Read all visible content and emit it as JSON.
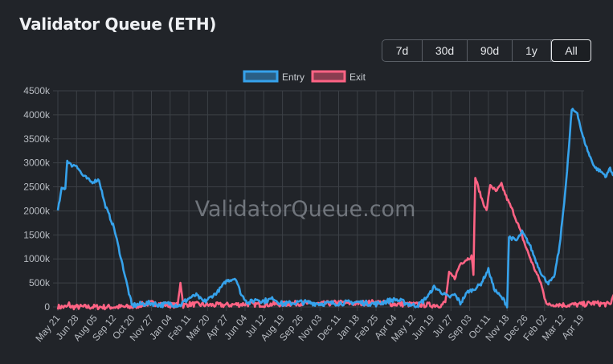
{
  "header": {
    "title": "Validator Queue (ETH)"
  },
  "range_buttons": [
    {
      "label": "7d",
      "active": false
    },
    {
      "label": "30d",
      "active": false
    },
    {
      "label": "90d",
      "active": false
    },
    {
      "label": "1y",
      "active": false
    },
    {
      "label": "All",
      "active": true
    }
  ],
  "watermark": "ValidatorQueue.com",
  "colors": {
    "entry": "#36a2eb",
    "exit": "#ff6384",
    "grid": "#3c4046",
    "tick": "#b8bcc2",
    "background": "#212429"
  },
  "chart_data": {
    "type": "line",
    "title": "Validator Queue (ETH)",
    "xlabel": "",
    "ylabel": "",
    "ylim": [
      0,
      4500000
    ],
    "y_ticks": [
      "0",
      "500k",
      "1000k",
      "1500k",
      "2000k",
      "2500k",
      "3000k",
      "3500k",
      "4000k",
      "4500k"
    ],
    "grid": true,
    "legend_position": "top",
    "categories": [
      "May 21",
      "Jun 28",
      "Aug 05",
      "Sep 12",
      "Oct 20",
      "Nov 27",
      "Jan 04",
      "Feb 11",
      "Mar 20",
      "Apr 27",
      "Jun 04",
      "Jul 12",
      "Aug 19",
      "Sep 26",
      "Nov 03",
      "Dec 11",
      "Jan 18",
      "Feb 25",
      "Apr 04",
      "May 12",
      "Jun 19",
      "Jul 27",
      "Sep 03",
      "Oct 11",
      "Nov 18",
      "Dec 26",
      "Feb 02",
      "Mar 12",
      "Apr 19"
    ],
    "series": [
      {
        "name": "Entry",
        "points_k": [
          [
            0,
            2000
          ],
          [
            0.2,
            2450
          ],
          [
            0.4,
            2480
          ],
          [
            0.5,
            3050
          ],
          [
            0.7,
            2950
          ],
          [
            1.0,
            2950
          ],
          [
            1.3,
            2750
          ],
          [
            1.8,
            2600
          ],
          [
            2.2,
            2650
          ],
          [
            2.5,
            2150
          ],
          [
            3.0,
            1650
          ],
          [
            3.5,
            800
          ],
          [
            3.95,
            30
          ],
          [
            4.5,
            60
          ],
          [
            5.0,
            80
          ],
          [
            5.5,
            40
          ],
          [
            6.0,
            70
          ],
          [
            6.5,
            30
          ],
          [
            7.0,
            180
          ],
          [
            7.4,
            250
          ],
          [
            7.8,
            100
          ],
          [
            8.5,
            300
          ],
          [
            9.0,
            540
          ],
          [
            9.5,
            600
          ],
          [
            9.8,
            250
          ],
          [
            10.2,
            80
          ],
          [
            10.6,
            160
          ],
          [
            11.0,
            120
          ],
          [
            11.5,
            180
          ],
          [
            12.0,
            60
          ],
          [
            13.0,
            100
          ],
          [
            14.0,
            70
          ],
          [
            15.0,
            80
          ],
          [
            16.0,
            100
          ],
          [
            17.0,
            60
          ],
          [
            18.0,
            160
          ],
          [
            19.0,
            30
          ],
          [
            19.3,
            50
          ],
          [
            19.8,
            240
          ],
          [
            20.1,
            420
          ],
          [
            20.5,
            300
          ],
          [
            20.9,
            200
          ],
          [
            21.2,
            260
          ],
          [
            21.5,
            80
          ],
          [
            21.9,
            320
          ],
          [
            22.2,
            360
          ],
          [
            22.6,
            480
          ],
          [
            23.0,
            780
          ],
          [
            23.3,
            380
          ],
          [
            23.6,
            240
          ],
          [
            23.9,
            100
          ],
          [
            24.0,
            40
          ],
          [
            24.1,
            1460
          ],
          [
            24.5,
            1380
          ],
          [
            24.8,
            1560
          ],
          [
            25.2,
            1300
          ],
          [
            25.6,
            900
          ],
          [
            25.9,
            640
          ],
          [
            26.2,
            500
          ],
          [
            26.5,
            600
          ],
          [
            26.8,
            1250
          ],
          [
            27.0,
            2000
          ],
          [
            27.2,
            2800
          ],
          [
            27.45,
            4100
          ],
          [
            27.75,
            4050
          ],
          [
            28.0,
            3600
          ],
          [
            28.4,
            3150
          ],
          [
            28.7,
            2900
          ],
          [
            29.0,
            2820
          ],
          [
            29.3,
            2720
          ],
          [
            29.5,
            2900
          ],
          [
            29.7,
            2700
          ],
          [
            29.85,
            3200
          ]
        ]
      },
      {
        "name": "Exit",
        "points_k": [
          [
            0,
            0
          ],
          [
            0.5,
            0
          ],
          [
            0.6,
            60
          ],
          [
            0.7,
            0
          ],
          [
            4.0,
            0
          ],
          [
            4.5,
            50
          ],
          [
            5.0,
            80
          ],
          [
            5.5,
            60
          ],
          [
            6.0,
            40
          ],
          [
            6.4,
            30
          ],
          [
            6.55,
            520
          ],
          [
            6.7,
            30
          ],
          [
            7.0,
            60
          ],
          [
            8.0,
            40
          ],
          [
            9.0,
            40
          ],
          [
            10.0,
            60
          ],
          [
            11.0,
            50
          ],
          [
            12.0,
            60
          ],
          [
            13.0,
            80
          ],
          [
            14.0,
            60
          ],
          [
            15.0,
            90
          ],
          [
            16.0,
            70
          ],
          [
            17.0,
            100
          ],
          [
            18.0,
            60
          ],
          [
            19.0,
            50
          ],
          [
            20.0,
            40
          ],
          [
            20.5,
            40
          ],
          [
            20.7,
            100
          ],
          [
            20.9,
            700
          ],
          [
            21.2,
            600
          ],
          [
            21.5,
            900
          ],
          [
            21.8,
            980
          ],
          [
            22.1,
            1050
          ],
          [
            22.2,
            700
          ],
          [
            22.3,
            2700
          ],
          [
            22.6,
            2300
          ],
          [
            22.9,
            2000
          ],
          [
            23.1,
            2550
          ],
          [
            23.4,
            2400
          ],
          [
            23.7,
            2550
          ],
          [
            24.0,
            2250
          ],
          [
            24.3,
            2000
          ],
          [
            24.6,
            1700
          ],
          [
            25.0,
            1250
          ],
          [
            25.4,
            850
          ],
          [
            25.8,
            500
          ],
          [
            26.0,
            200
          ],
          [
            26.2,
            30
          ],
          [
            26.6,
            60
          ],
          [
            27.0,
            40
          ],
          [
            28.0,
            50
          ],
          [
            28.6,
            80
          ],
          [
            29.2,
            60
          ],
          [
            29.5,
            50
          ],
          [
            29.85,
            420
          ]
        ]
      }
    ]
  }
}
